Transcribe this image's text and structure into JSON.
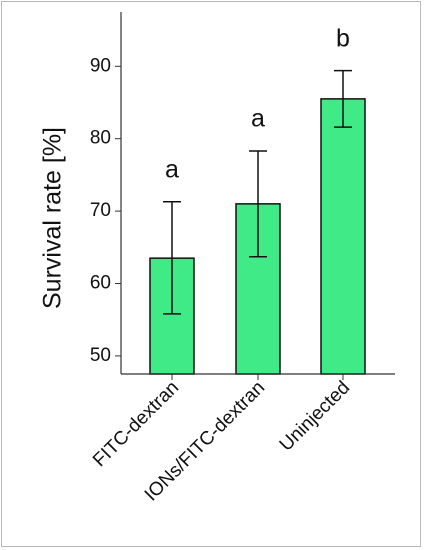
{
  "chart_data": {
    "type": "bar",
    "title": "",
    "xlabel": "",
    "ylabel": "Survival rate [%]",
    "categories": [
      "FITC-dextran",
      "IONs/FITC-dextran",
      "Uninjected"
    ],
    "values": [
      63.5,
      71.0,
      85.5
    ],
    "error_low": [
      55.8,
      63.7,
      81.6
    ],
    "error_high": [
      71.3,
      78.3,
      89.4
    ],
    "annotations": [
      "a",
      "a",
      "b"
    ],
    "ylim": [
      47.5,
      97.5
    ],
    "yticks": [
      50,
      60,
      70,
      80,
      90
    ],
    "grid": false,
    "legend": "none",
    "bar_color": "#40ea87",
    "edge_color": "#111111"
  }
}
